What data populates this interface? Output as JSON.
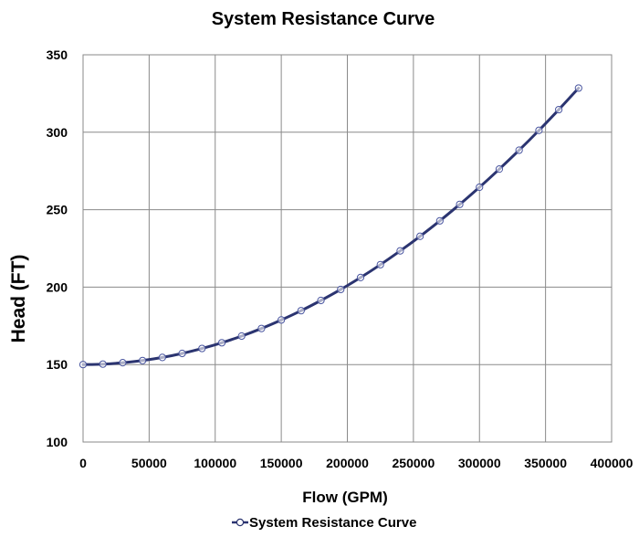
{
  "chart_data": {
    "type": "line",
    "title": "System Resistance Curve",
    "xlabel": "Flow (GPM)",
    "ylabel": "Head (FT)",
    "xlim": [
      0,
      400000
    ],
    "ylim": [
      100,
      350
    ],
    "x_ticks": [
      "0",
      "50000",
      "100000",
      "150000",
      "200000",
      "250000",
      "300000",
      "350000",
      "400000"
    ],
    "y_ticks": [
      "100",
      "150",
      "200",
      "250",
      "300",
      "350"
    ],
    "grid": true,
    "legend": "bottom",
    "series": [
      {
        "name": "System Resistance Curve",
        "color": "#2b3470",
        "x": [
          0,
          15000,
          30000,
          45000,
          60000,
          75000,
          90000,
          105000,
          120000,
          135000,
          150000,
          165000,
          180000,
          195000,
          210000,
          225000,
          240000,
          255000,
          270000,
          285000,
          300000,
          315000,
          330000,
          345000,
          360000,
          375000
        ],
        "y": [
          150.0,
          150.3,
          151.2,
          152.6,
          154.6,
          157.2,
          160.4,
          164.1,
          168.4,
          173.3,
          178.8,
          184.8,
          191.4,
          198.5,
          206.2,
          214.5,
          223.4,
          232.8,
          242.8,
          253.4,
          264.5,
          276.2,
          288.4,
          301.2,
          314.6,
          328.5
        ]
      }
    ]
  }
}
